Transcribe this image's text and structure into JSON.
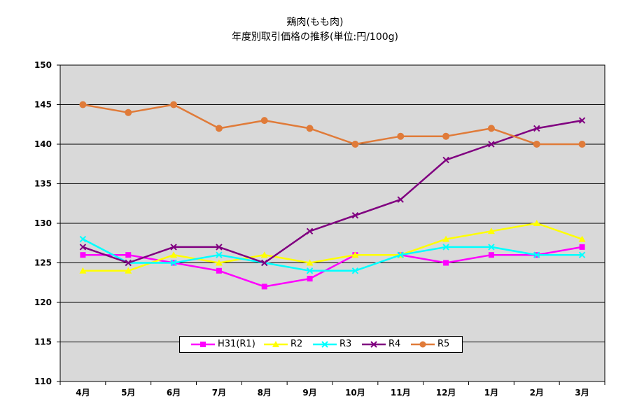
{
  "title": {
    "line1": "鶏肉(もも肉)",
    "line2": "年度別取引価格の推移(単位:円/100g)"
  },
  "chart_data": {
    "type": "line",
    "categories": [
      "4月",
      "5月",
      "6月",
      "7月",
      "8月",
      "9月",
      "10月",
      "11月",
      "12月",
      "1月",
      "2月",
      "3月"
    ],
    "ylim": [
      110,
      150
    ],
    "yticks": [
      110,
      115,
      120,
      125,
      130,
      135,
      140,
      145,
      150
    ],
    "grid": true,
    "legend_position": "bottom-center",
    "plot_background": "#d9d9d9",
    "series": [
      {
        "name": "H31(R1)",
        "color": "#ff00ff",
        "marker": "square",
        "values": [
          126,
          126,
          125,
          124,
          122,
          123,
          126,
          126,
          125,
          126,
          126,
          127
        ]
      },
      {
        "name": "R2",
        "color": "#ffff00",
        "marker": "triangle",
        "values": [
          124,
          124,
          126,
          125,
          126,
          125,
          126,
          126,
          128,
          129,
          130,
          128
        ]
      },
      {
        "name": "R3",
        "color": "#00ffff",
        "marker": "x",
        "values": [
          128,
          125,
          125,
          126,
          125,
          124,
          124,
          126,
          127,
          127,
          126,
          126
        ]
      },
      {
        "name": "R4",
        "color": "#800080",
        "marker": "x",
        "values": [
          127,
          125,
          127,
          127,
          125,
          129,
          131,
          133,
          138,
          140,
          142,
          143
        ]
      },
      {
        "name": "R5",
        "color": "#e07b39",
        "marker": "circle",
        "values": [
          145,
          144,
          145,
          142,
          143,
          142,
          140,
          141,
          141,
          142,
          140,
          140
        ]
      }
    ]
  }
}
